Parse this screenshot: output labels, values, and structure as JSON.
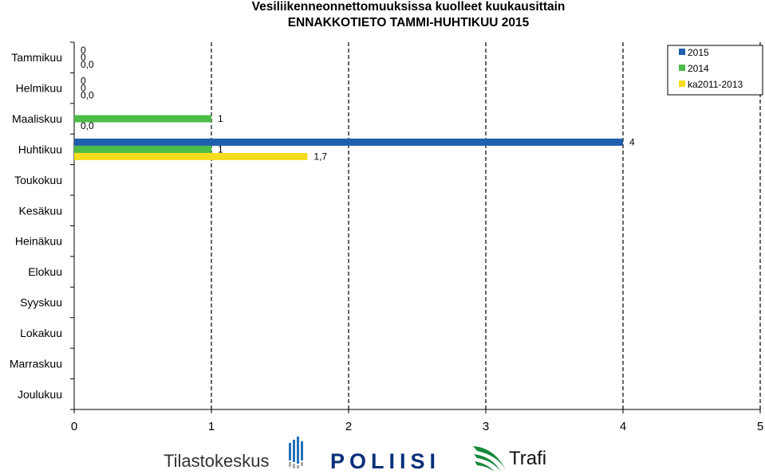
{
  "chart_data": {
    "type": "bar",
    "orientation": "horizontal",
    "title_line1": "Vesiliikenneonnettomuuksissa kuolleet kuukausittain",
    "title_line2": "ENNAKKOTIETO TAMMI-HUHTIKUU 2015",
    "categories": [
      "Tammikuu",
      "Helmikuu",
      "Maaliskuu",
      "Huhtikuu",
      "Toukokuu",
      "Kesäkuu",
      "Heinäkuu",
      "Elokuu",
      "Syyskuu",
      "Lokakuu",
      "Marraskuu",
      "Joulukuu"
    ],
    "series": [
      {
        "name": "2015",
        "color": "#1f5fad",
        "values": [
          0,
          0,
          null,
          4,
          null,
          null,
          null,
          null,
          null,
          null,
          null,
          null
        ],
        "labels": [
          "0",
          "0",
          "",
          "4",
          "",
          "",
          "",
          "",
          "",
          "",
          "",
          ""
        ]
      },
      {
        "name": "2014",
        "color": "#4cbb47",
        "values": [
          0,
          0,
          1,
          1,
          null,
          null,
          null,
          null,
          null,
          null,
          null,
          null
        ],
        "labels": [
          "0",
          "0",
          "1",
          "1",
          "",
          "",
          "",
          "",
          "",
          "",
          "",
          ""
        ]
      },
      {
        "name": "ka2011-2013",
        "color": "#f5dc1e",
        "values": [
          0,
          0,
          0,
          1.7,
          null,
          null,
          null,
          null,
          null,
          null,
          null,
          null
        ],
        "labels": [
          "0,0",
          "0,0",
          "0,0",
          "1,7",
          "",
          "",
          "",
          "",
          "",
          "",
          "",
          ""
        ]
      }
    ],
    "xlim": [
      0,
      5
    ],
    "xticks": [
      "0",
      "1",
      "2",
      "3",
      "4",
      "5"
    ],
    "grid": "vertical-dashed",
    "legend_position": "top-right"
  },
  "logos": {
    "tilastokeskus": "Tilastokeskus",
    "poliisi": "POLIISI",
    "trafi": "Trafi"
  }
}
